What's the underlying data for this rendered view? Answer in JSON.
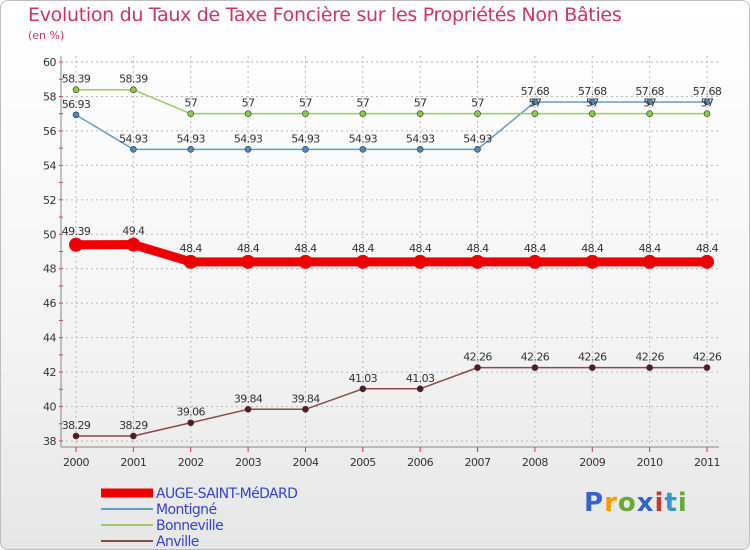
{
  "chart_data": {
    "type": "line",
    "title": "Evolution du Taux de Taxe Foncière sur les Propriétés Non Bâties",
    "ylabel": "(en %)",
    "xlabel": "",
    "x": [
      "2000",
      "2001",
      "2002",
      "2003",
      "2004",
      "2005",
      "2006",
      "2007",
      "2008",
      "2009",
      "2010",
      "2011"
    ],
    "ylim": [
      38,
      60
    ],
    "yticks": [
      38,
      40,
      42,
      44,
      46,
      48,
      50,
      52,
      54,
      56,
      58,
      60
    ],
    "series": [
      {
        "name": "AUGE-SAINT-MéDARD",
        "color": "#ee0000",
        "values": [
          49.39,
          49.4,
          48.4,
          48.4,
          48.4,
          48.4,
          48.4,
          48.4,
          48.4,
          48.4,
          48.4,
          48.4
        ],
        "labels": [
          "49.39",
          "49.4",
          "48.4",
          "48.4",
          "48.4",
          "48.4",
          "48.4",
          "48.4",
          "48.4",
          "48.4",
          "48.4",
          "48.4"
        ]
      },
      {
        "name": "Montigné",
        "color": "#6699cc",
        "values": [
          56.93,
          54.93,
          54.93,
          54.93,
          54.93,
          54.93,
          54.93,
          54.93,
          57.68,
          57.68,
          57.68,
          57.68
        ],
        "labels": [
          "56.93",
          "54.93",
          "54.93",
          "54.93",
          "54.93",
          "54.93",
          "54.93",
          "54.93",
          "57.68",
          "57.68",
          "57.68",
          "57.68"
        ]
      },
      {
        "name": "Bonneville",
        "color": "#99cc66",
        "values": [
          58.39,
          58.39,
          57,
          57,
          57,
          57,
          57,
          57,
          57,
          57,
          57,
          57
        ],
        "labels": [
          "58.39",
          "58.39",
          "57",
          "57",
          "57",
          "57",
          "57",
          "57",
          "57",
          "57",
          "57",
          "57"
        ]
      },
      {
        "name": "Anville",
        "color": "#8a4a4a",
        "values": [
          38.29,
          38.29,
          39.06,
          39.84,
          39.84,
          41.03,
          41.03,
          42.26,
          42.26,
          42.26,
          42.26,
          42.26
        ],
        "labels": [
          "38.29",
          "38.29",
          "39.06",
          "39.84",
          "39.84",
          "41.03",
          "41.03",
          "42.26",
          "42.26",
          "42.26",
          "42.26",
          "42.26"
        ]
      }
    ],
    "legend": {
      "position": "bottom-left"
    }
  },
  "logo": {
    "text": "Proxiti",
    "letters": [
      "P",
      "r",
      "o",
      "x",
      "i",
      "t",
      "i"
    ],
    "colors": [
      "#3366cc",
      "#ff9900",
      "#66aa33",
      "#3366cc",
      "#cc3333",
      "#3399cc",
      "#66aa33"
    ]
  }
}
